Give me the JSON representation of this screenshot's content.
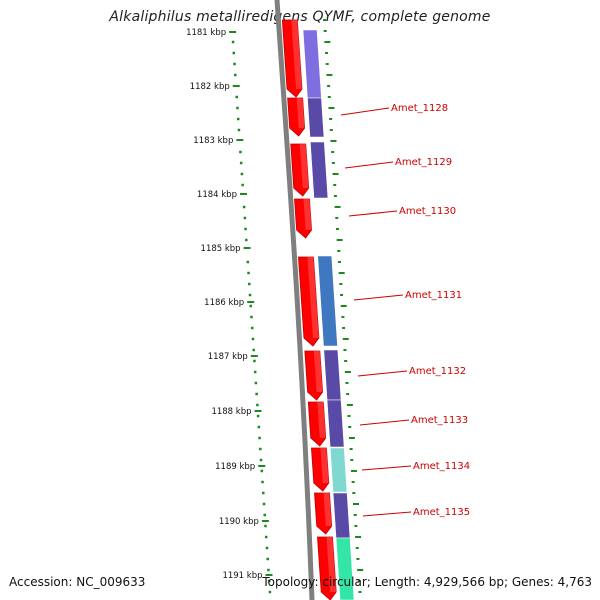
{
  "title": "Alkaliphilus metalliredigens QYMF, complete genome",
  "footer": {
    "accession": "Accession: NC_009633",
    "summary": "Topology: circular; Length: 4,929,566 bp; Genes: 4,763"
  },
  "colors": {
    "forward_cds": "#ff0000",
    "backbone": "#7f7f7f",
    "tick": "#1e8a1e",
    "label": "#cc0000",
    "blast_blue": "#3f78c0",
    "blast_purple": "#5a4aa8",
    "blast_lavender": "#7e6fe0",
    "blast_teal": "#7fd9d0",
    "blast_green": "#33e6a8"
  },
  "ruler": {
    "ticks": [
      "1181 kbp",
      "1182 kbp",
      "1183 kbp",
      "1184 kbp",
      "1185 kbp",
      "1186 kbp",
      "1187 kbp",
      "1188 kbp",
      "1189 kbp",
      "1190 kbp",
      "1191 kbp"
    ]
  },
  "genes": [
    {
      "label": "Amet_1128"
    },
    {
      "label": "Amet_1129"
    },
    {
      "label": "Amet_1130"
    },
    {
      "label": "Amet_1131"
    },
    {
      "label": "Amet_1132"
    },
    {
      "label": "Amet_1133"
    },
    {
      "label": "Amet_1134"
    },
    {
      "label": "Amet_1135"
    }
  ]
}
